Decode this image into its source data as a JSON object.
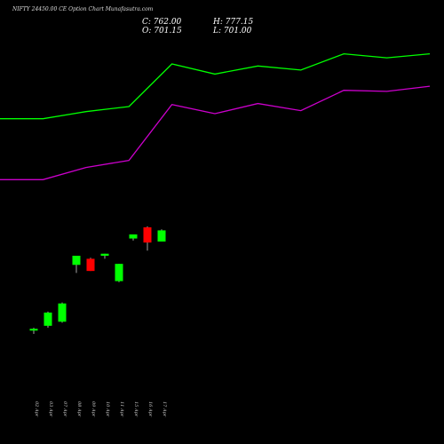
{
  "chart_data": {
    "type": "candlestick",
    "title": "NIFTY 24450.00 CE Option Chart Munafasutra.com",
    "ohlc": {
      "close": "C: 762.00",
      "open": "O: 701.15",
      "high": "H: 777.15",
      "low": "L: 701.00"
    },
    "categories": [
      "02 Apr",
      "03 Apr",
      "07 Apr",
      "08 Apr",
      "09 Apr",
      "10 Apr",
      "11 Apr",
      "15 Apr",
      "16 Apr",
      "17 Apr"
    ],
    "candles": [
      {
        "open": 10,
        "high": 12,
        "low": 6,
        "close": 11,
        "color": "#00ff00"
      },
      {
        "open": 14,
        "high": 28,
        "low": 12,
        "close": 27,
        "color": "#00ff00"
      },
      {
        "open": 18,
        "high": 37,
        "low": 17,
        "close": 36,
        "color": "#00ff00"
      },
      {
        "open": 74,
        "high": 83,
        "low": 66,
        "close": 83,
        "color": "#00ff00"
      },
      {
        "open": 80,
        "high": 81,
        "low": 68,
        "close": 68,
        "color": "#ff0000"
      },
      {
        "open": 83,
        "high": 85,
        "low": 80,
        "close": 85,
        "color": "#00ff00"
      },
      {
        "open": 58,
        "high": 75,
        "low": 57,
        "close": 75,
        "color": "#00ff00"
      },
      {
        "open": 100,
        "high": 104,
        "low": 98,
        "close": 104,
        "color": "#00ff00"
      },
      {
        "open": 111,
        "high": 112,
        "low": 88,
        "close": 96,
        "color": "#ff0000"
      },
      {
        "open": 97,
        "high": 109,
        "low": 97,
        "close": 108,
        "color": "#00ff00"
      }
    ],
    "bands": [
      {
        "color": "#00ff00",
        "values": [
          218,
          218,
          225,
          230,
          272,
          262,
          270,
          266,
          282,
          278,
          282
        ]
      },
      {
        "color": "#cc00cc",
        "values": [
          158,
          158,
          170,
          177,
          232,
          223,
          233,
          226,
          246,
          245,
          250
        ]
      }
    ],
    "ylim": [
      -50,
      300
    ]
  }
}
